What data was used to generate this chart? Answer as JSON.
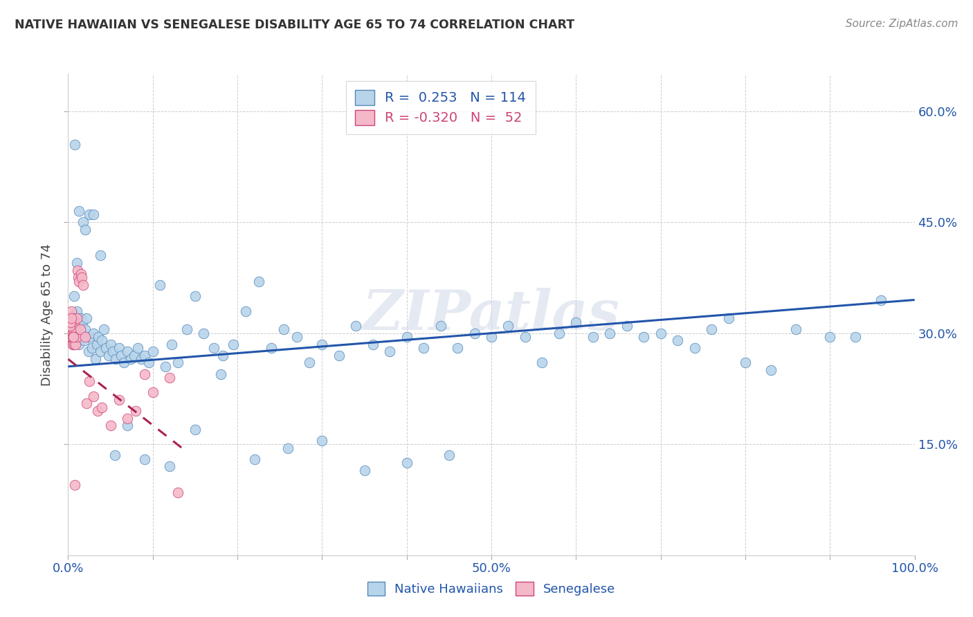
{
  "title": "NATIVE HAWAIIAN VS SENEGALESE DISABILITY AGE 65 TO 74 CORRELATION CHART",
  "source": "Source: ZipAtlas.com",
  "ylabel": "Disability Age 65 to 74",
  "xlim": [
    0,
    1.0
  ],
  "ylim": [
    0.0,
    0.65
  ],
  "blue_R": 0.253,
  "blue_N": 114,
  "pink_R": -0.32,
  "pink_N": 52,
  "blue_color": "#b8d4ea",
  "pink_color": "#f5b8c8",
  "blue_edge_color": "#5588bb",
  "pink_edge_color": "#cc4477",
  "blue_line_color": "#2255aa",
  "pink_line_color": "#aa2255",
  "watermark": "ZIPatlas",
  "legend_label_blue": "R =  0.253   N = 114",
  "legend_label_pink": "R = -0.320   N =  52",
  "bottom_label_blue": "Native Hawaiians",
  "bottom_label_pink": "Senegalese",
  "blue_points_x": [
    0.002,
    0.003,
    0.004,
    0.005,
    0.006,
    0.007,
    0.008,
    0.009,
    0.01,
    0.011,
    0.012,
    0.013,
    0.014,
    0.015,
    0.016,
    0.017,
    0.018,
    0.019,
    0.02,
    0.022,
    0.024,
    0.026,
    0.028,
    0.03,
    0.032,
    0.034,
    0.036,
    0.038,
    0.04,
    0.042,
    0.045,
    0.048,
    0.05,
    0.053,
    0.056,
    0.06,
    0.063,
    0.066,
    0.07,
    0.074,
    0.078,
    0.082,
    0.086,
    0.09,
    0.095,
    0.1,
    0.108,
    0.115,
    0.122,
    0.13,
    0.14,
    0.15,
    0.16,
    0.172,
    0.183,
    0.195,
    0.21,
    0.225,
    0.24,
    0.255,
    0.27,
    0.285,
    0.3,
    0.32,
    0.34,
    0.36,
    0.38,
    0.4,
    0.42,
    0.44,
    0.46,
    0.48,
    0.5,
    0.52,
    0.54,
    0.56,
    0.58,
    0.6,
    0.62,
    0.64,
    0.66,
    0.68,
    0.7,
    0.72,
    0.74,
    0.76,
    0.78,
    0.8,
    0.83,
    0.86,
    0.9,
    0.93,
    0.96,
    0.038,
    0.025,
    0.018,
    0.01,
    0.007,
    0.013,
    0.02,
    0.008,
    0.03,
    0.055,
    0.07,
    0.09,
    0.12,
    0.15,
    0.18,
    0.22,
    0.26,
    0.3,
    0.35,
    0.4,
    0.45
  ],
  "blue_points_y": [
    0.305,
    0.32,
    0.295,
    0.31,
    0.285,
    0.325,
    0.3,
    0.315,
    0.33,
    0.295,
    0.31,
    0.285,
    0.305,
    0.32,
    0.295,
    0.315,
    0.3,
    0.29,
    0.305,
    0.32,
    0.275,
    0.295,
    0.28,
    0.3,
    0.265,
    0.285,
    0.295,
    0.275,
    0.29,
    0.305,
    0.28,
    0.27,
    0.285,
    0.275,
    0.265,
    0.28,
    0.27,
    0.26,
    0.275,
    0.265,
    0.27,
    0.28,
    0.265,
    0.27,
    0.26,
    0.275,
    0.365,
    0.255,
    0.285,
    0.26,
    0.305,
    0.35,
    0.3,
    0.28,
    0.27,
    0.285,
    0.33,
    0.37,
    0.28,
    0.305,
    0.295,
    0.26,
    0.285,
    0.27,
    0.31,
    0.285,
    0.275,
    0.295,
    0.28,
    0.31,
    0.28,
    0.3,
    0.295,
    0.31,
    0.295,
    0.26,
    0.3,
    0.315,
    0.295,
    0.3,
    0.31,
    0.295,
    0.3,
    0.29,
    0.28,
    0.305,
    0.32,
    0.26,
    0.25,
    0.305,
    0.295,
    0.295,
    0.345,
    0.405,
    0.46,
    0.45,
    0.395,
    0.35,
    0.465,
    0.44,
    0.555,
    0.46,
    0.135,
    0.175,
    0.13,
    0.12,
    0.17,
    0.245,
    0.13,
    0.145,
    0.155,
    0.115,
    0.125,
    0.135
  ],
  "pink_points_x": [
    0.001,
    0.001,
    0.002,
    0.002,
    0.003,
    0.003,
    0.003,
    0.004,
    0.004,
    0.004,
    0.005,
    0.005,
    0.005,
    0.006,
    0.006,
    0.006,
    0.007,
    0.007,
    0.007,
    0.008,
    0.008,
    0.009,
    0.009,
    0.01,
    0.01,
    0.011,
    0.012,
    0.013,
    0.014,
    0.015,
    0.016,
    0.018,
    0.02,
    0.022,
    0.025,
    0.03,
    0.035,
    0.04,
    0.05,
    0.06,
    0.07,
    0.08,
    0.09,
    0.1,
    0.12,
    0.13,
    0.002,
    0.003,
    0.004,
    0.005,
    0.006,
    0.008
  ],
  "pink_points_y": [
    0.305,
    0.295,
    0.315,
    0.3,
    0.32,
    0.295,
    0.31,
    0.33,
    0.295,
    0.315,
    0.3,
    0.31,
    0.285,
    0.32,
    0.295,
    0.305,
    0.315,
    0.295,
    0.285,
    0.31,
    0.295,
    0.305,
    0.285,
    0.32,
    0.295,
    0.385,
    0.375,
    0.37,
    0.305,
    0.38,
    0.375,
    0.365,
    0.295,
    0.205,
    0.235,
    0.215,
    0.195,
    0.2,
    0.175,
    0.21,
    0.185,
    0.195,
    0.245,
    0.22,
    0.24,
    0.085,
    0.31,
    0.315,
    0.32,
    0.295,
    0.295,
    0.095
  ],
  "blue_line_x": [
    0.0,
    1.0
  ],
  "blue_line_y": [
    0.255,
    0.345
  ],
  "pink_line_x": [
    0.0,
    0.14
  ],
  "pink_line_y": [
    0.265,
    0.14
  ],
  "pink_line_style": "solid"
}
